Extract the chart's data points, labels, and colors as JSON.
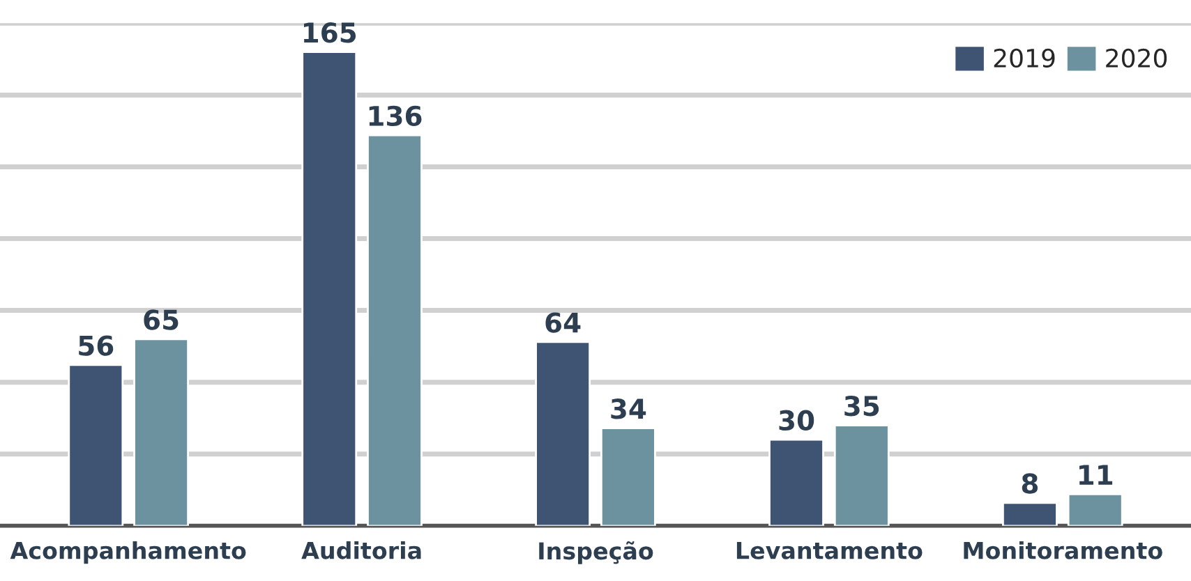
{
  "chart_data": {
    "type": "bar",
    "categories": [
      "Acompanhamento",
      "Auditoria",
      "Inspeção",
      "Levantamento",
      "Monitoramento"
    ],
    "series": [
      {
        "name": "2019",
        "color": "#3f5373",
        "values": [
          56,
          165,
          64,
          30,
          8
        ]
      },
      {
        "name": "2020",
        "color": "#6b929e",
        "values": [
          65,
          136,
          34,
          35,
          11
        ]
      }
    ],
    "ylim": [
      0,
      175
    ],
    "yticks": [
      {
        "value": 0,
        "label": null
      },
      {
        "value": 25,
        "label": null
      },
      {
        "value": 50,
        "label": null
      },
      {
        "value": 75,
        "label": null
      },
      {
        "value": 100,
        "label": null
      },
      {
        "value": 125,
        "label": null
      },
      {
        "value": 150,
        "label": null
      },
      {
        "value": 175,
        "label": null
      }
    ],
    "grid": "y",
    "legend": "top right",
    "data_labels": true,
    "tick_labels": "x"
  }
}
